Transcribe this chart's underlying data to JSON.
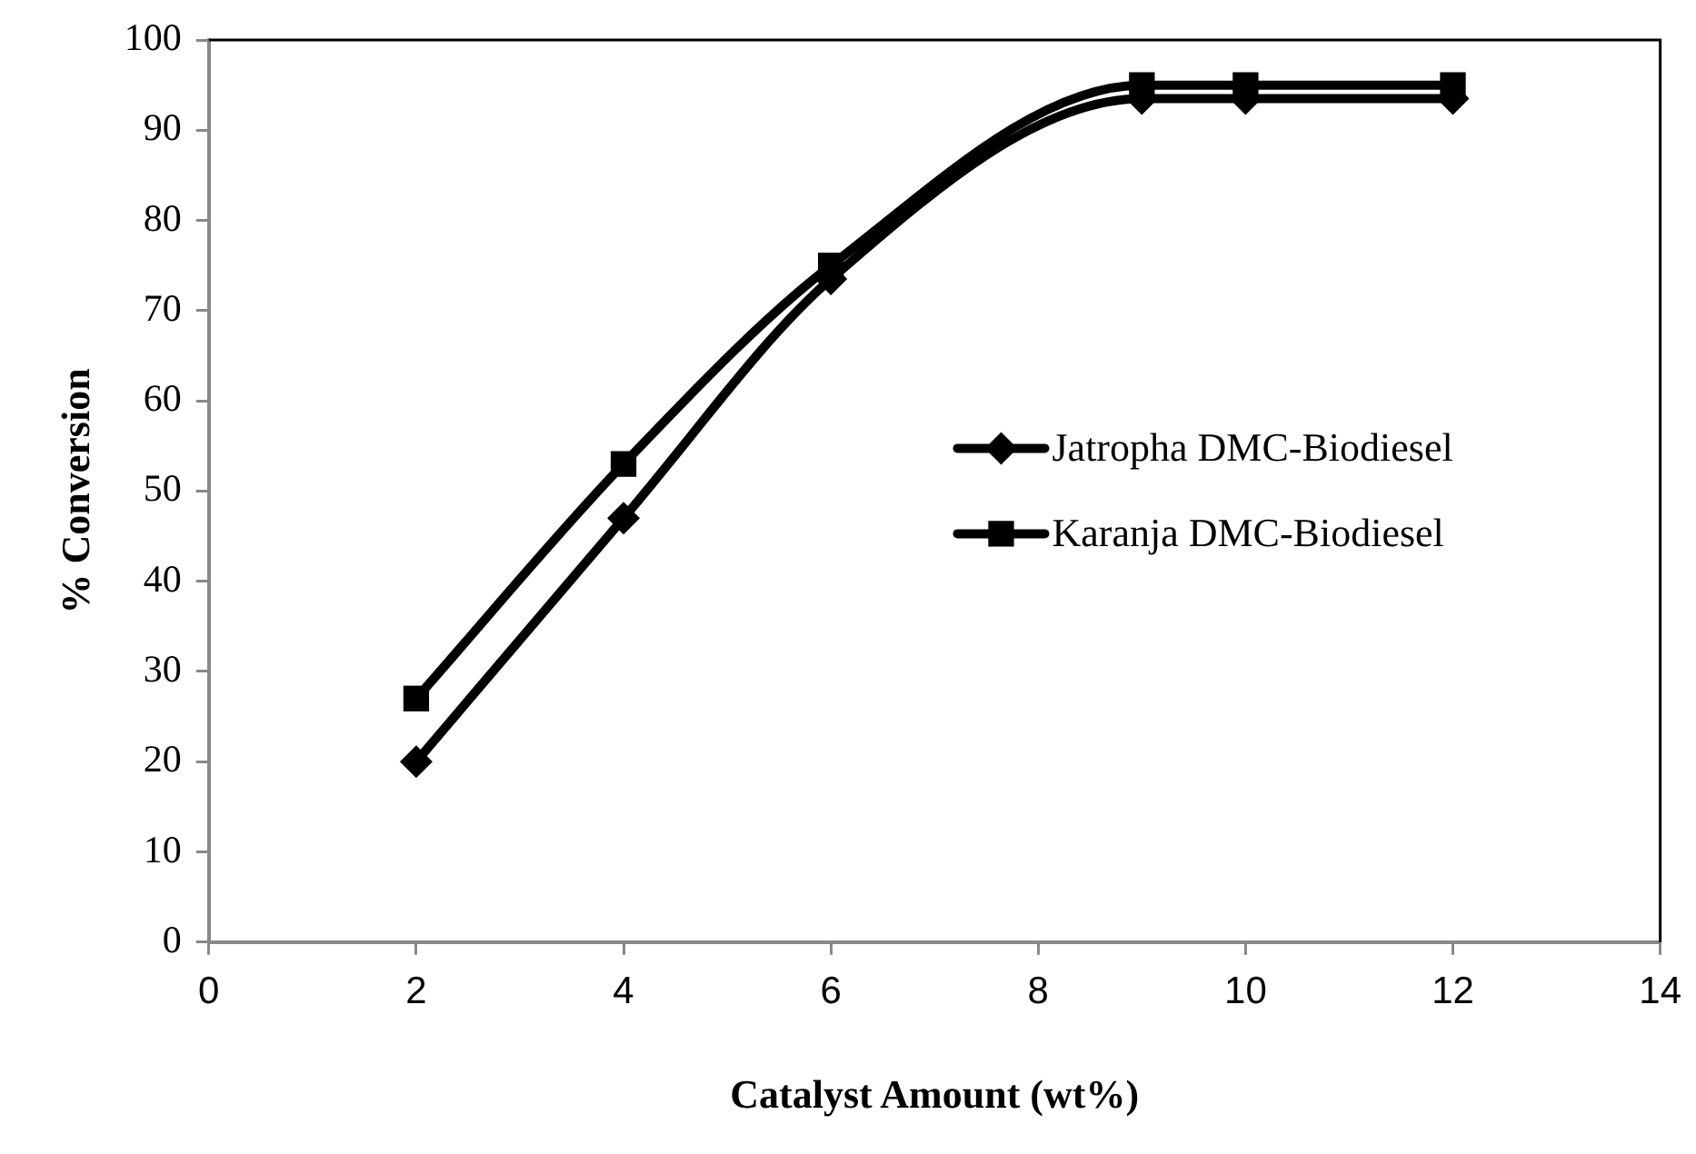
{
  "chart_data": {
    "type": "line",
    "xlabel": "Catalyst Amount (wt%)",
    "ylabel": "% Conversion",
    "x": [
      2,
      4,
      6,
      9,
      10,
      12
    ],
    "series": [
      {
        "name": "Jatropha DMC-Biodiesel",
        "color": "#000000",
        "marker": "diamond",
        "values": [
          20,
          47,
          73.5,
          93.5,
          93.5,
          93.5
        ]
      },
      {
        "name": "Karanja DMC-Biodiesel",
        "color": "#000000",
        "marker": "square",
        "values": [
          27,
          53,
          75,
          95,
          95,
          95
        ]
      }
    ],
    "xlim": [
      0,
      14
    ],
    "xticks": [
      0,
      2,
      4,
      6,
      8,
      10,
      12,
      14
    ],
    "ylim": [
      0,
      100
    ],
    "yticks": [
      0,
      10,
      20,
      30,
      40,
      50,
      60,
      70,
      80,
      90,
      100
    ],
    "grid": false,
    "legend": "right",
    "line_style": "solid"
  }
}
